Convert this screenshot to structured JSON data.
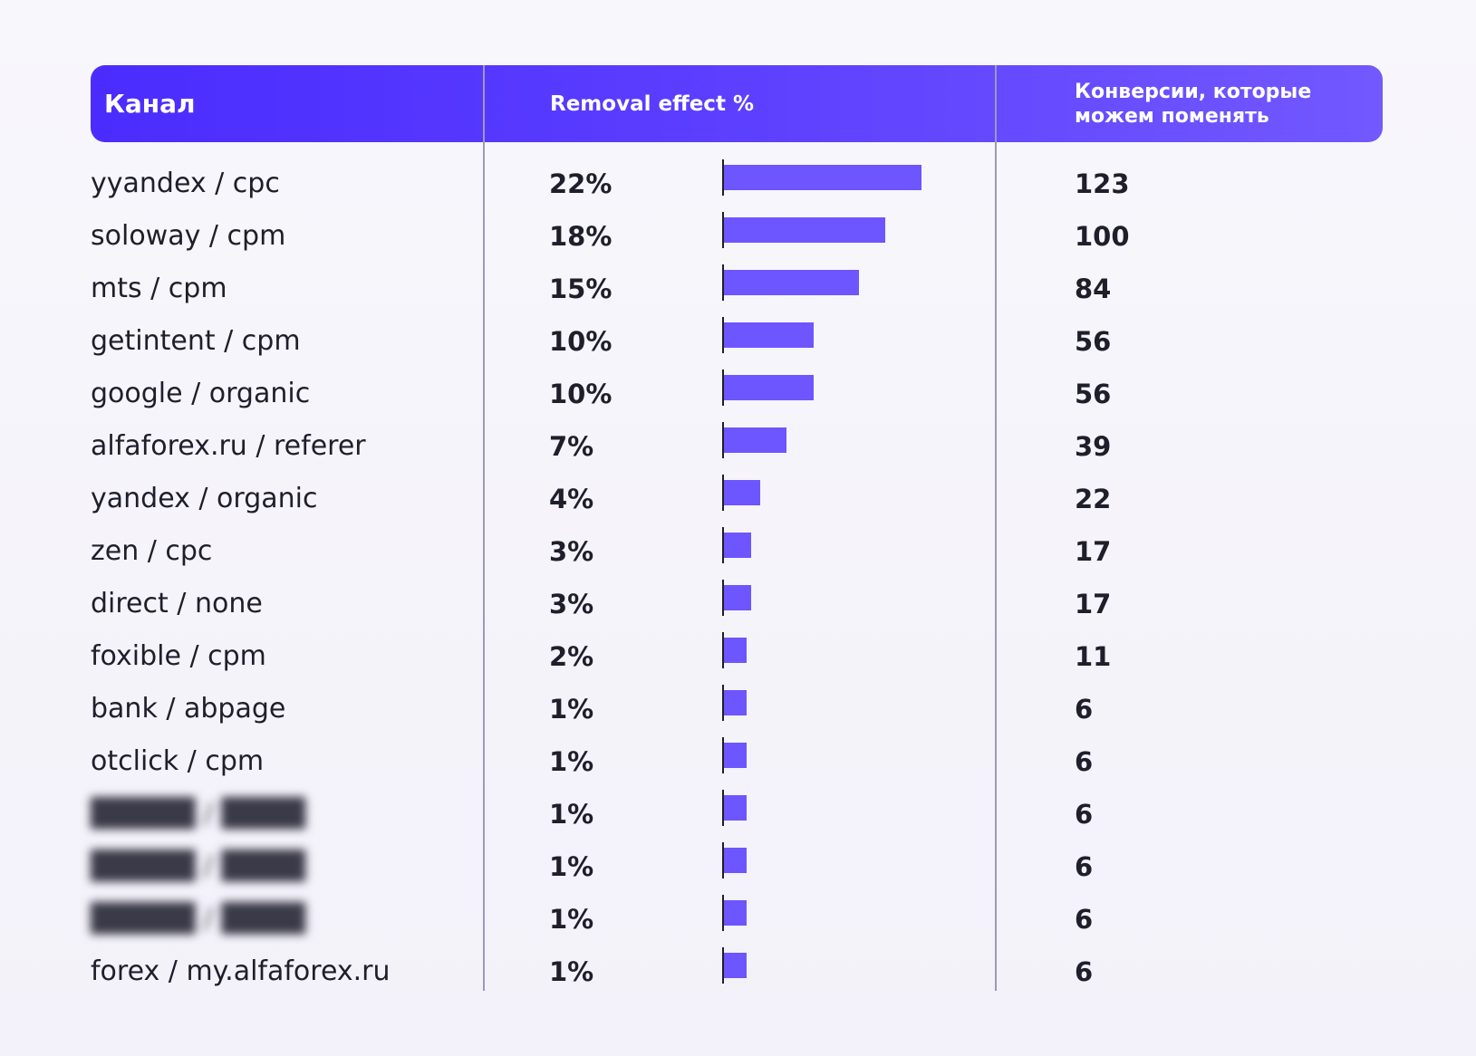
{
  "header": {
    "channel": "Канал",
    "removal": "Removal effect %",
    "conversions": "Конверсии, которые можем поменять"
  },
  "colors": {
    "bar": "#6d55ff",
    "header_start": "#4a2cff",
    "header_end": "#7258ff"
  },
  "chart_data": {
    "type": "table",
    "columns": [
      "Канал",
      "Removal effect %",
      "Конверсии, которые можем поменять"
    ],
    "rows": [
      {
        "channel": "yyandex / cpc",
        "removal_pct": 22,
        "removal_label": "22%",
        "conversions": "123"
      },
      {
        "channel": "soloway / cpm",
        "removal_pct": 18,
        "removal_label": "18%",
        "conversions": "100"
      },
      {
        "channel": "mts / cpm",
        "removal_pct": 15,
        "removal_label": "15%",
        "conversions": "84"
      },
      {
        "channel": "getintent / cpm",
        "removal_pct": 10,
        "removal_label": "10%",
        "conversions": "56"
      },
      {
        "channel": "google / organic",
        "removal_pct": 10,
        "removal_label": "10%",
        "conversions": "56"
      },
      {
        "channel": "alfaforex.ru / referer",
        "removal_pct": 7,
        "removal_label": "7%",
        "conversions": "39"
      },
      {
        "channel": "yandex / organic",
        "removal_pct": 4,
        "removal_label": "4%",
        "conversions": "22"
      },
      {
        "channel": "zen / cpc",
        "removal_pct": 3,
        "removal_label": "3%",
        "conversions": "17"
      },
      {
        "channel": "direct / none",
        "removal_pct": 3,
        "removal_label": "3%",
        "conversions": "17"
      },
      {
        "channel": "foxible / cpm",
        "removal_pct": 2,
        "removal_label": "2%",
        "conversions": "11"
      },
      {
        "channel": "bank / abpage",
        "removal_pct": 1,
        "removal_label": "1%",
        "conversions": "6"
      },
      {
        "channel": "otclick / cpm",
        "removal_pct": 1,
        "removal_label": "1%",
        "conversions": "6"
      },
      {
        "channel": "",
        "blurred": true,
        "removal_pct": 1,
        "removal_label": "1%",
        "conversions": "6"
      },
      {
        "channel": "",
        "blurred": true,
        "removal_pct": 1,
        "removal_label": "1%",
        "conversions": "6"
      },
      {
        "channel": "",
        "blurred": true,
        "removal_pct": 1,
        "removal_label": "1%",
        "conversions": "6"
      },
      {
        "channel": "forex / my.alfaforex.ru",
        "removal_pct": 1,
        "removal_label": "1%",
        "conversions": "6"
      }
    ]
  }
}
